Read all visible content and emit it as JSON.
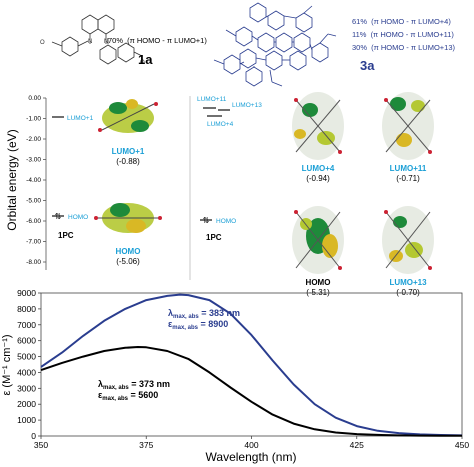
{
  "top_panel": {
    "compound_1a": {
      "label": "1a",
      "transition_pct": "70%",
      "transition_text": "(π HOMO - π LUMO+1)"
    },
    "compound_3a": {
      "label": "3a",
      "transitions": [
        {
          "pct": "61%",
          "text": "(π HOMO - π LUMO+4)"
        },
        {
          "pct": "11%",
          "text": "(π HOMO - π LUMO+11)"
        },
        {
          "pct": "30%",
          "text": "(π HOMO - π LUMO+13)"
        }
      ]
    },
    "label_color_1a": "#111111",
    "label_color_3a": "#2a3d8f"
  },
  "energy_chart": {
    "ylabel": "Orbital energy (eV)",
    "yticks": [
      "0.00",
      "-1.00",
      "-2.00",
      "-3.00",
      "-4.00",
      "-5.00",
      "-6.00",
      "-7.00",
      "-8.00"
    ],
    "ylim": [
      -8.0,
      0.0
    ],
    "state_label": "1PC",
    "left_levels": [
      {
        "label": "LUMO+1",
        "energy": -0.88,
        "value_text": "(-0.88)"
      },
      {
        "label": "HOMO",
        "energy": -5.06,
        "value_text": "(-5.06)"
      }
    ],
    "right_levels_labels": [
      "LUMO+11",
      "LUMO+13",
      "LUMO+4",
      "HOMO"
    ],
    "right_orbitals": [
      {
        "label": "LUMO+4",
        "value_text": "(-0.94)",
        "energy": -0.94
      },
      {
        "label": "LUMO+11",
        "value_text": "(-0.71)",
        "energy": -0.71
      },
      {
        "label": "HOMO",
        "value_text": "(-5.31)",
        "energy": -5.31
      },
      {
        "label": "LUMO+13",
        "value_text": "(-0.70)",
        "energy": -0.7
      }
    ],
    "orbital_label_color": "#1a9fd6"
  },
  "chart_data": {
    "type": "line",
    "xlabel": "Wavelength (nm)",
    "ylabel": "ε (M⁻¹ cm⁻¹)",
    "xlim": [
      350,
      450
    ],
    "ylim": [
      0,
      9000
    ],
    "xticks": [
      350,
      375,
      400,
      425,
      450
    ],
    "yticks": [
      0,
      1000,
      2000,
      3000,
      4000,
      5000,
      6000,
      7000,
      8000,
      9000
    ],
    "grid": false,
    "series": [
      {
        "color": "#2a3d8f",
        "x": [
          350,
          355,
          360,
          365,
          370,
          375,
          380,
          383,
          385,
          390,
          395,
          400,
          405,
          410,
          415,
          420,
          425,
          430,
          435,
          440,
          445,
          450
        ],
        "y": [
          4350,
          5250,
          6300,
          7250,
          8000,
          8550,
          8820,
          8900,
          8870,
          8550,
          7700,
          6350,
          4750,
          3250,
          2000,
          1150,
          620,
          330,
          180,
          100,
          60,
          40
        ]
      },
      {
        "color": "#000000",
        "x": [
          350,
          355,
          360,
          365,
          370,
          373,
          375,
          380,
          385,
          390,
          395,
          400,
          405,
          410,
          415,
          420,
          425,
          430,
          435,
          440,
          445,
          450
        ],
        "y": [
          4150,
          4600,
          5000,
          5350,
          5550,
          5600,
          5580,
          5350,
          4850,
          4000,
          3050,
          2150,
          1350,
          780,
          420,
          220,
          120,
          70,
          40,
          25,
          15,
          10
        ]
      }
    ],
    "annotations": [
      {
        "text_main": "λ",
        "sub": "max, abs",
        "text_val": " = 383 nm",
        "color": "#2a3d8f"
      },
      {
        "text_main": "ε",
        "sub": "max, abs",
        "text_val": " = 8900",
        "color": "#2a3d8f"
      },
      {
        "text_main": "λ",
        "sub": "max, abs",
        "text_val": " = 373 nm",
        "color": "#000000"
      },
      {
        "text_main": "ε",
        "sub": "max, abs",
        "text_val": " = 5600",
        "color": "#000000"
      }
    ]
  }
}
